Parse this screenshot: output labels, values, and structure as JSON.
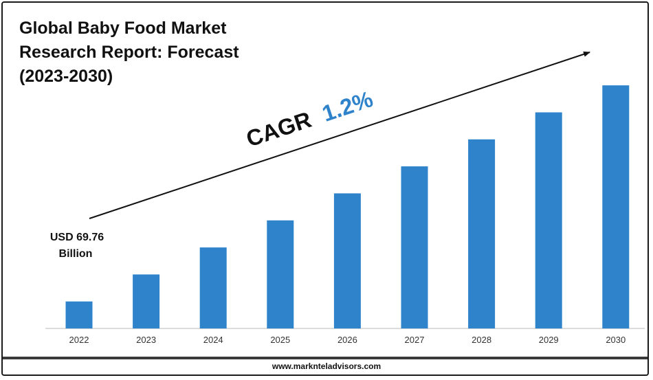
{
  "title_lines": [
    "Global Baby Food Market",
    "Research Report: Forecast",
    "(2023-2030)"
  ],
  "footer": {
    "url": "www.marknteladvisors.com"
  },
  "cagr": {
    "label": "CAGR",
    "value": "1.2%"
  },
  "colors": {
    "bar": "#2f83cb",
    "cagr_value": "#2f83cb",
    "text": "#111111",
    "axis": "#b8b8b8"
  },
  "chart_data": {
    "type": "bar",
    "title": "Global Baby Food Market Research Report: Forecast (2023-2030)",
    "categories": [
      "2022",
      "2023",
      "2024",
      "2025",
      "2026",
      "2027",
      "2028",
      "2029",
      "2030"
    ],
    "values": [
      1.0,
      2.0,
      3.0,
      4.0,
      5.0,
      6.0,
      7.0,
      8.0,
      9.0
    ],
    "value_note": "relative bar heights; y-axis unlabeled",
    "ylim": [
      0,
      10.2
    ],
    "xlabel": "",
    "ylabel": "",
    "grid": false,
    "annotations": [
      {
        "category": "2022",
        "text_lines": [
          "USD 69.76",
          "Billion"
        ]
      }
    ]
  }
}
